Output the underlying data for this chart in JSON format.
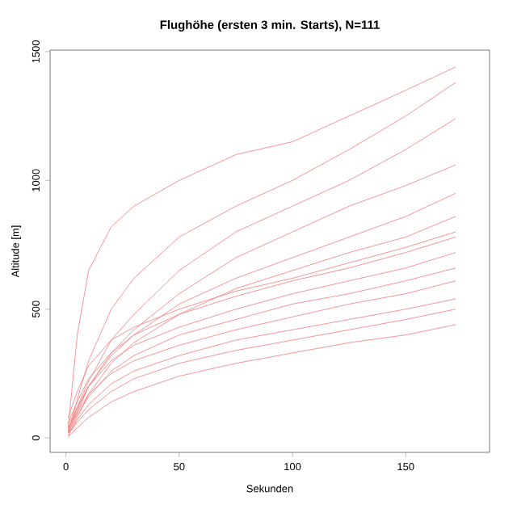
{
  "chart_data": {
    "type": "line",
    "title": "Flughöhe (ersten 3 min. Starts), N=111",
    "xlabel": "Sekunden",
    "ylabel": "Altitude [m]",
    "x": [
      1,
      5,
      10,
      20,
      30,
      50,
      75,
      100,
      125,
      150,
      172
    ],
    "series": [
      {
        "color": "#f47a7a",
        "values": [
          40,
          400,
          650,
          820,
          900,
          1000,
          1100,
          1150,
          1250,
          1350,
          1440
        ]
      },
      {
        "color": "#f47a7a",
        "values": [
          20,
          150,
          300,
          500,
          620,
          780,
          900,
          1000,
          1120,
          1250,
          1380
        ]
      },
      {
        "color": "#f47a7a",
        "values": [
          30,
          120,
          220,
          380,
          480,
          650,
          800,
          900,
          1000,
          1120,
          1240
        ]
      },
      {
        "color": "#f47a7a",
        "values": [
          20,
          100,
          200,
          330,
          420,
          560,
          700,
          800,
          900,
          980,
          1060
        ]
      },
      {
        "color": "#f47a7a",
        "values": [
          50,
          120,
          200,
          320,
          400,
          520,
          620,
          700,
          780,
          860,
          950
        ]
      },
      {
        "color": "#f47a7a",
        "values": [
          10,
          80,
          170,
          290,
          370,
          480,
          580,
          650,
          720,
          780,
          860
        ]
      },
      {
        "color": "#f47a7a",
        "values": [
          60,
          140,
          230,
          330,
          400,
          480,
          550,
          610,
          660,
          720,
          780
        ]
      },
      {
        "color": "#f47a7a",
        "values": [
          30,
          110,
          200,
          300,
          360,
          430,
          500,
          560,
          610,
          660,
          720
        ]
      },
      {
        "color": "#f47a7a",
        "values": [
          20,
          90,
          160,
          260,
          320,
          400,
          460,
          520,
          560,
          610,
          660
        ]
      },
      {
        "color": "#f47a7a",
        "values": [
          40,
          100,
          170,
          250,
          300,
          360,
          420,
          470,
          520,
          560,
          610
        ]
      },
      {
        "color": "#f47a7a",
        "values": [
          10,
          70,
          130,
          210,
          260,
          320,
          380,
          420,
          460,
          500,
          540
        ]
      },
      {
        "color": "#f47a7a",
        "values": [
          20,
          60,
          110,
          180,
          230,
          290,
          340,
          380,
          420,
          460,
          500
        ]
      },
      {
        "color": "#f47a7a",
        "values": [
          5,
          40,
          80,
          140,
          180,
          240,
          290,
          330,
          370,
          400,
          440
        ]
      },
      {
        "color": "#f47a7a",
        "values": [
          80,
          180,
          280,
          380,
          430,
          500,
          570,
          620,
          680,
          740,
          800
        ]
      }
    ],
    "xlim": [
      -7,
      187
    ],
    "ylim": [
      -56,
      1506
    ],
    "xticks": [
      0,
      50,
      100,
      150
    ],
    "yticks": [
      0,
      500,
      1000,
      1500
    ],
    "grid": false
  }
}
